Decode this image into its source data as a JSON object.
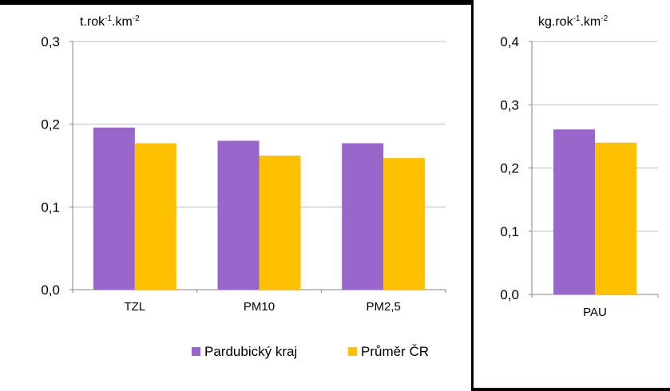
{
  "chart_data": [
    {
      "type": "bar",
      "ylabel": "t.rok-1.km-2",
      "ylabel_parts": [
        "t.rok",
        "-1",
        ".km",
        "-2"
      ],
      "categories": [
        "TZL",
        "PM10",
        "PM2,5"
      ],
      "series": [
        {
          "name": "Pardubický kraj",
          "values": [
            0.196,
            0.18,
            0.177
          ]
        },
        {
          "name": "Průměr ČR",
          "values": [
            0.177,
            0.162,
            0.159
          ]
        }
      ],
      "ylim": [
        0,
        0.3
      ],
      "yticks": [
        "0,0",
        "0,1",
        "0,2",
        "0,3"
      ],
      "grid": true,
      "legend": "bottom"
    },
    {
      "type": "bar",
      "ylabel": "kg.rok-1.km-2",
      "ylabel_parts": [
        "kg.rok",
        "-1",
        ".km",
        "-2"
      ],
      "categories": [
        "PAU"
      ],
      "series": [
        {
          "name": "Pardubický kraj",
          "values": [
            0.261
          ]
        },
        {
          "name": "Průměr ČR",
          "values": [
            0.24
          ]
        }
      ],
      "ylim": [
        0,
        0.4
      ],
      "yticks": [
        "0,0",
        "0,1",
        "0,2",
        "0,3",
        "0,4"
      ],
      "grid": true
    }
  ],
  "colors": {
    "pardubicky": "#9966CC",
    "prumer": "#FFC000",
    "grid": "#BFBFBF",
    "frame": "#000000"
  }
}
